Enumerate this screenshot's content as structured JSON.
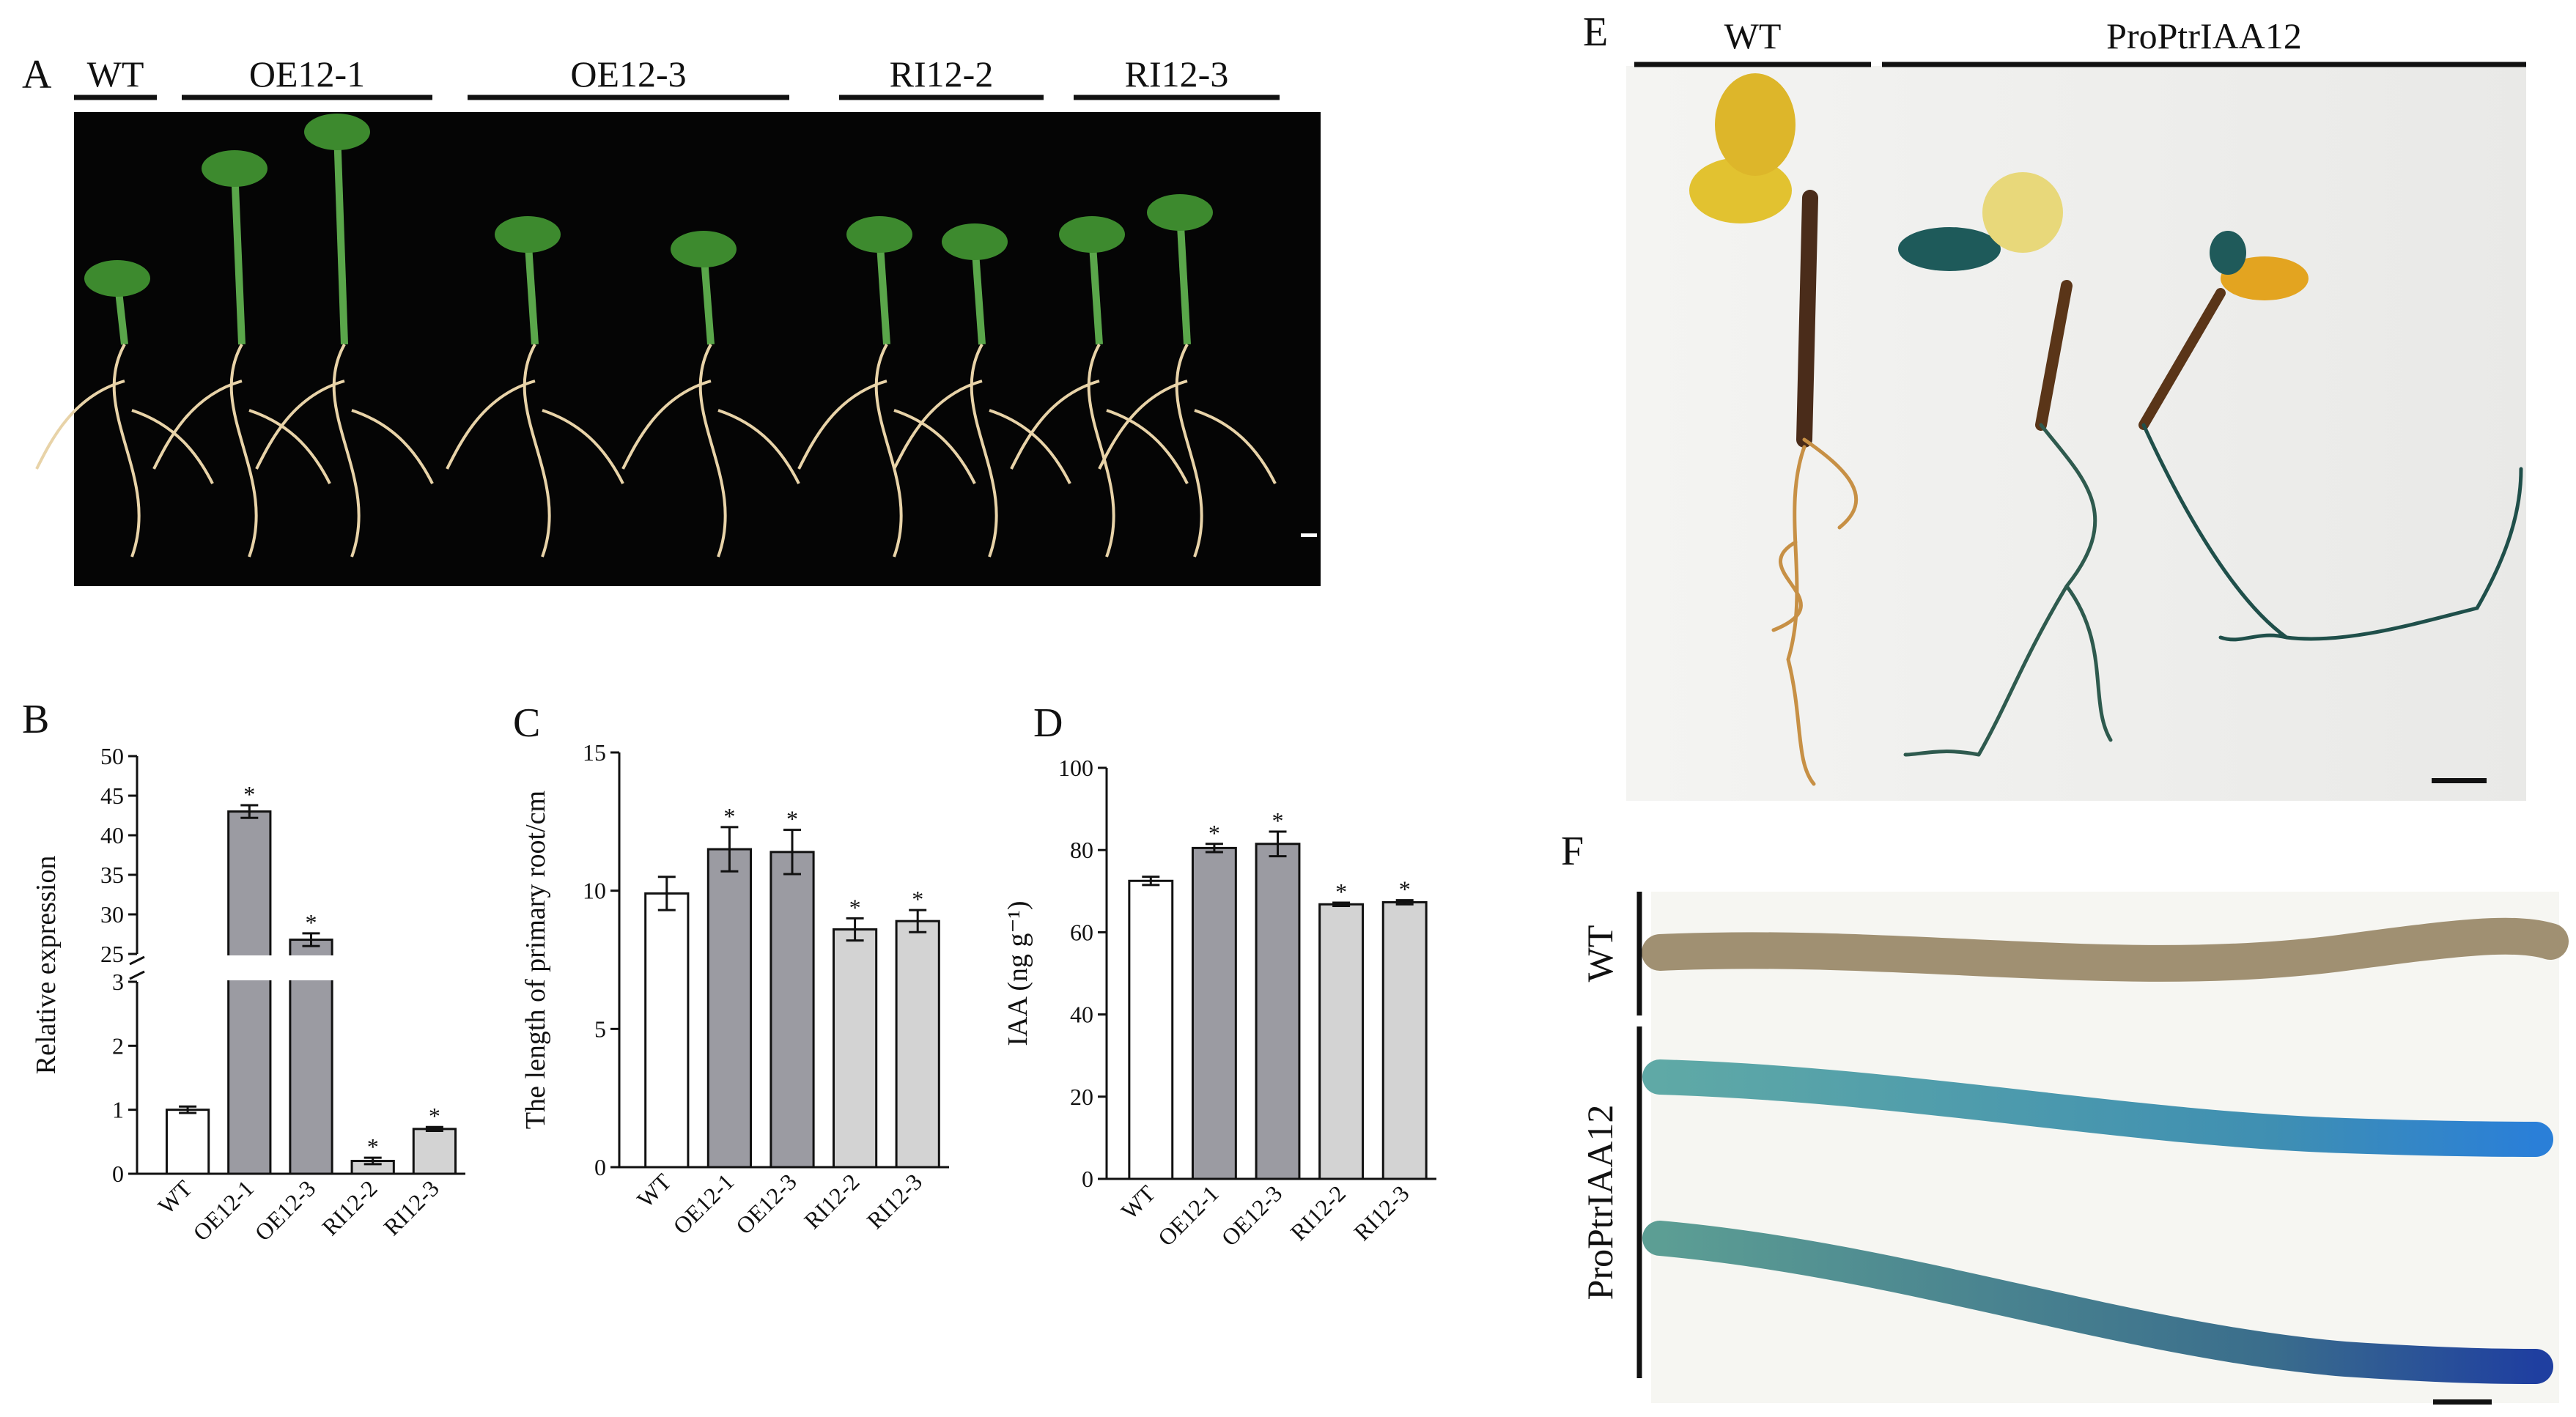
{
  "panel_labels": [
    "A",
    "B",
    "C",
    "D",
    "E",
    "F"
  ],
  "photo_a": {
    "groups": [
      "WT",
      "OE12-1",
      "OE12-3",
      "RI12-2",
      "RI12-3"
    ]
  },
  "photo_e": {
    "groups": [
      "WT",
      "ProPtrIAA12"
    ]
  },
  "photo_f": {
    "rows": [
      "WT",
      "ProPtrIAA12"
    ]
  },
  "chart_data": [
    {
      "type": "bar",
      "ylabel": "Relative expression",
      "categories": [
        "WT",
        "OE12-1",
        "OE12-3",
        "RI12-2",
        "RI12-3"
      ],
      "values": [
        1.0,
        43,
        26.8,
        0.2,
        0.7
      ],
      "errors": [
        0.05,
        0.8,
        0.8,
        0.05,
        0.03
      ],
      "significance": [
        null,
        "*",
        "*",
        "*",
        "*"
      ],
      "colors": [
        "#ffffff",
        "#9b9ba2",
        "#9b9ba2",
        "#d3d3d3",
        "#d3d3d3"
      ],
      "ylim": [
        0,
        50
      ],
      "ybreak": [
        3,
        25
      ],
      "yticks": [
        0,
        1,
        2,
        3,
        25,
        30,
        35,
        40,
        45,
        50
      ]
    },
    {
      "type": "bar",
      "ylabel": "The length of primary root/cm",
      "categories": [
        "WT",
        "OE12-1",
        "OE12-3",
        "RI12-2",
        "RI12-3"
      ],
      "values": [
        9.9,
        11.5,
        11.4,
        8.6,
        8.9
      ],
      "errors": [
        0.6,
        0.8,
        0.8,
        0.4,
        0.4
      ],
      "significance": [
        null,
        "*",
        "*",
        "*",
        "*"
      ],
      "colors": [
        "#ffffff",
        "#9b9ba2",
        "#9b9ba2",
        "#d3d3d3",
        "#d3d3d3"
      ],
      "ylim": [
        0,
        15
      ],
      "yticks": [
        0,
        5,
        10,
        15
      ]
    },
    {
      "type": "bar",
      "ylabel": "IAA (ng g⁻¹)",
      "categories": [
        "WT",
        "OE12-1",
        "OE12-3",
        "RI12-2",
        "RI12-3"
      ],
      "values": [
        72.5,
        80.5,
        81.5,
        66.8,
        67.3
      ],
      "errors": [
        1,
        1,
        3,
        0.4,
        0.5
      ],
      "significance": [
        null,
        "*",
        "*",
        "*",
        "*"
      ],
      "colors": [
        "#ffffff",
        "#9b9ba2",
        "#9b9ba2",
        "#d3d3d3",
        "#d3d3d3"
      ],
      "ylim": [
        0,
        100
      ],
      "yticks": [
        0,
        20,
        40,
        60,
        80,
        100
      ]
    }
  ]
}
